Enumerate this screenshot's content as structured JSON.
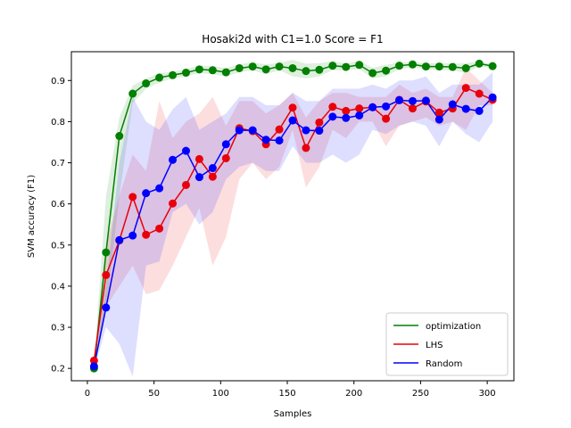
{
  "chart_data": {
    "type": "line",
    "title": "Hosaki2d with C1=1.0 Score = F1",
    "xlabel": "Samples",
    "ylabel": "SVM accuracy (F1)",
    "xlim": [
      -12,
      320
    ],
    "ylim": [
      0.17,
      0.97
    ],
    "xticks": [
      0,
      50,
      100,
      150,
      200,
      250,
      300
    ],
    "yticks": [
      0.2,
      0.3,
      0.4,
      0.5,
      0.6,
      0.7,
      0.8,
      0.9
    ],
    "grid": false,
    "legend_position": "lower-right",
    "x": [
      5,
      14,
      24,
      34,
      44,
      54,
      64,
      74,
      84,
      94,
      104,
      114,
      124,
      134,
      144,
      154,
      164,
      174,
      184,
      194,
      204,
      214,
      224,
      234,
      244,
      254,
      264,
      274,
      284,
      294,
      304
    ],
    "series": [
      {
        "name": "optimization",
        "color": "#008000",
        "values": [
          0.2,
          0.482,
          0.765,
          0.868,
          0.893,
          0.907,
          0.913,
          0.919,
          0.927,
          0.925,
          0.92,
          0.93,
          0.934,
          0.927,
          0.934,
          0.93,
          0.923,
          0.926,
          0.936,
          0.933,
          0.938,
          0.918,
          0.924,
          0.936,
          0.939,
          0.934,
          0.934,
          0.933,
          0.93,
          0.941,
          0.935
        ],
        "lower": [
          0.19,
          0.34,
          0.62,
          0.845,
          0.88,
          0.895,
          0.905,
          0.91,
          0.918,
          0.915,
          0.91,
          0.92,
          0.925,
          0.915,
          0.925,
          0.91,
          0.905,
          0.91,
          0.925,
          0.925,
          0.928,
          0.905,
          0.91,
          0.928,
          0.932,
          0.927,
          0.925,
          0.925,
          0.918,
          0.935,
          0.93
        ],
        "upper": [
          0.21,
          0.62,
          0.81,
          0.888,
          0.905,
          0.918,
          0.921,
          0.928,
          0.936,
          0.935,
          0.93,
          0.94,
          0.944,
          0.939,
          0.943,
          0.95,
          0.941,
          0.942,
          0.947,
          0.941,
          0.948,
          0.931,
          0.938,
          0.944,
          0.946,
          0.941,
          0.943,
          0.941,
          0.942,
          0.947,
          0.94
        ]
      },
      {
        "name": "LHS",
        "color": "#e8000b",
        "values": [
          0.219,
          0.427,
          0.511,
          0.617,
          0.525,
          0.54,
          0.601,
          0.646,
          0.709,
          0.666,
          0.711,
          0.784,
          0.777,
          0.745,
          0.781,
          0.834,
          0.736,
          0.798,
          0.836,
          0.826,
          0.832,
          0.835,
          0.807,
          0.853,
          0.832,
          0.849,
          0.822,
          0.832,
          0.882,
          0.868,
          0.853
        ],
        "lower": [
          0.21,
          0.35,
          0.4,
          0.45,
          0.38,
          0.39,
          0.45,
          0.52,
          0.59,
          0.45,
          0.52,
          0.66,
          0.7,
          0.66,
          0.69,
          0.78,
          0.64,
          0.69,
          0.78,
          0.76,
          0.8,
          0.8,
          0.74,
          0.79,
          0.8,
          0.81,
          0.79,
          0.8,
          0.78,
          0.84,
          0.84
        ],
        "upper": [
          0.225,
          0.5,
          0.62,
          0.72,
          0.68,
          0.85,
          0.76,
          0.8,
          0.82,
          0.86,
          0.79,
          0.85,
          0.85,
          0.82,
          0.84,
          0.87,
          0.81,
          0.85,
          0.87,
          0.87,
          0.86,
          0.86,
          0.86,
          0.89,
          0.87,
          0.88,
          0.86,
          0.86,
          0.93,
          0.9,
          0.87
        ]
      },
      {
        "name": "Random",
        "color": "#0000ff",
        "values": [
          0.205,
          0.348,
          0.512,
          0.523,
          0.626,
          0.638,
          0.707,
          0.729,
          0.665,
          0.687,
          0.745,
          0.779,
          0.779,
          0.756,
          0.754,
          0.803,
          0.779,
          0.778,
          0.812,
          0.809,
          0.815,
          0.835,
          0.837,
          0.852,
          0.85,
          0.851,
          0.805,
          0.842,
          0.831,
          0.826,
          0.859
        ],
        "lower": [
          0.195,
          0.3,
          0.26,
          0.18,
          0.45,
          0.46,
          0.58,
          0.6,
          0.55,
          0.58,
          0.66,
          0.69,
          0.7,
          0.68,
          0.68,
          0.74,
          0.7,
          0.7,
          0.72,
          0.7,
          0.72,
          0.78,
          0.77,
          0.79,
          0.8,
          0.79,
          0.74,
          0.8,
          0.77,
          0.75,
          0.8
        ],
        "upper": [
          0.215,
          0.4,
          0.7,
          0.86,
          0.8,
          0.78,
          0.83,
          0.86,
          0.78,
          0.8,
          0.82,
          0.86,
          0.86,
          0.84,
          0.84,
          0.87,
          0.85,
          0.85,
          0.88,
          0.88,
          0.88,
          0.89,
          0.88,
          0.9,
          0.9,
          0.91,
          0.87,
          0.89,
          0.89,
          0.89,
          0.92
        ]
      }
    ]
  }
}
